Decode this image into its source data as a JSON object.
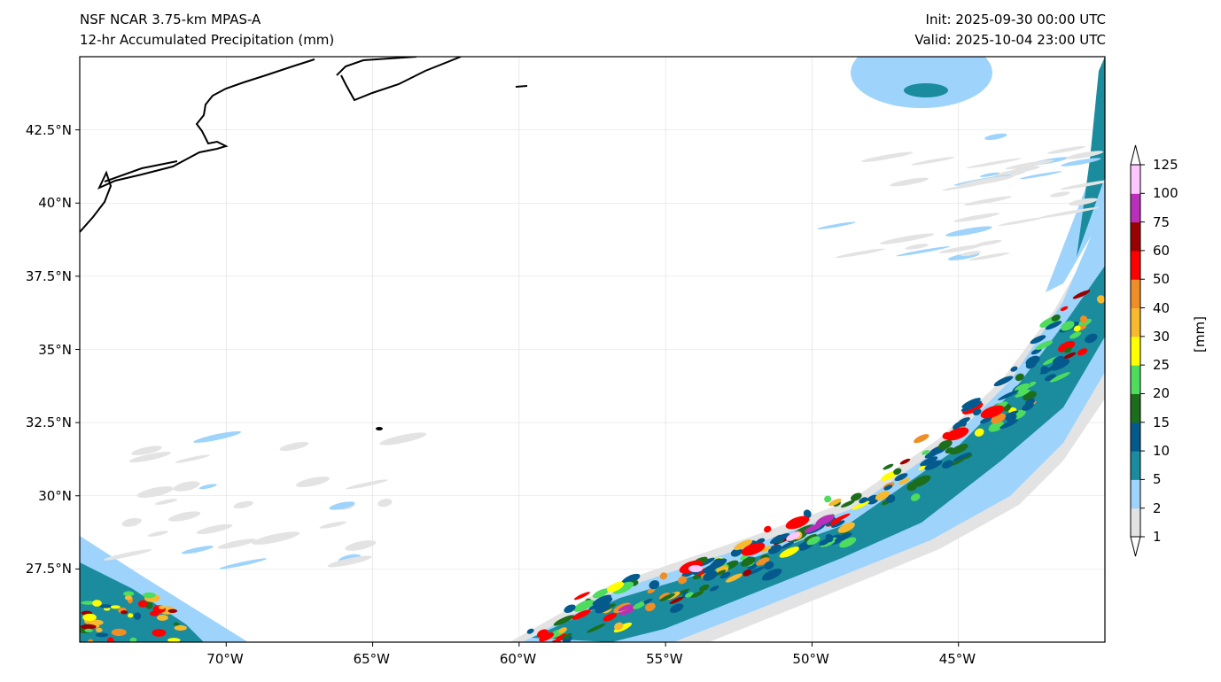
{
  "title_left": [
    "NSF NCAR 3.75-km MPAS-A",
    "12-hr Accumulated Precipitation (mm)"
  ],
  "title_right": [
    "Init: 2025-09-30 00:00 UTC",
    "Valid: 2025-10-04 23:00 UTC"
  ],
  "map": {
    "extent": {
      "lon": [
        -75,
        -40
      ],
      "lat": [
        25,
        45
      ]
    },
    "lon_ticks": [
      {
        "v": -70,
        "label": "70°W"
      },
      {
        "v": -65,
        "label": "65°W"
      },
      {
        "v": -60,
        "label": "60°W"
      },
      {
        "v": -55,
        "label": "55°W"
      },
      {
        "v": -50,
        "label": "50°W"
      },
      {
        "v": -45,
        "label": "45°W"
      }
    ],
    "lat_ticks": [
      {
        "v": 42.5,
        "label": "42.5°N"
      },
      {
        "v": 40,
        "label": "40°N"
      },
      {
        "v": 37.5,
        "label": "37.5°N"
      },
      {
        "v": 35,
        "label": "35°N"
      },
      {
        "v": 32.5,
        "label": "32.5°N"
      },
      {
        "v": 30,
        "label": "30°N"
      },
      {
        "v": 27.5,
        "label": "27.5°N"
      }
    ]
  },
  "colorbar": {
    "label": "[mm]",
    "levels": [
      "1",
      "2",
      "5",
      "10",
      "15",
      "20",
      "25",
      "30",
      "40",
      "50",
      "60",
      "75",
      "100",
      "125"
    ],
    "colors": [
      "#e3e3e3",
      "#9ed3fb",
      "#1a8c9e",
      "#045a8d",
      "#1c6e1c",
      "#4edc5e",
      "#ffff00",
      "#f7b92e",
      "#ef8e26",
      "#ff0000",
      "#9a0000",
      "#b92fb9",
      "#ffc6ff"
    ]
  }
}
